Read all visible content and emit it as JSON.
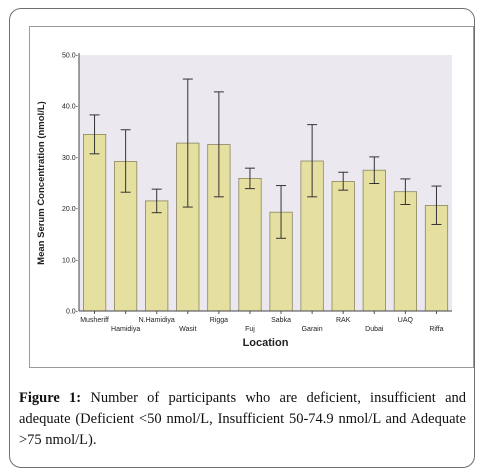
{
  "chart_data": {
    "type": "bar",
    "categories": [
      "Musheriff",
      "Hamidiya",
      "N.Hamidiya",
      "Wasit",
      "Rigga",
      "Fuj",
      "Sabka",
      "Garain",
      "RAK",
      "Dubai",
      "UAQ",
      "Riffa"
    ],
    "values": [
      34.5,
      29.2,
      21.5,
      32.8,
      32.5,
      25.9,
      19.3,
      29.3,
      25.3,
      27.5,
      23.3,
      20.6
    ],
    "error_low": [
      30.7,
      23.2,
      19.2,
      20.3,
      22.3,
      23.9,
      14.2,
      22.3,
      23.6,
      24.9,
      20.8,
      16.9
    ],
    "error_high": [
      38.3,
      35.4,
      23.8,
      45.3,
      42.8,
      27.9,
      24.5,
      36.4,
      27.1,
      30.1,
      25.8,
      24.4
    ],
    "xlabel": "Location",
    "ylabel": "Mean Serum Concentration (nmol/L)",
    "ylim": [
      0,
      50
    ],
    "yticks": [
      "0.0-",
      "10.0-",
      "20.0-",
      "30.0-",
      "40.0-",
      "50.0-"
    ],
    "grid": false,
    "bar_color": "#e5e0a0",
    "bar_edge_color": "#8a8560",
    "plot_background": "#ebe8f0"
  },
  "caption": {
    "lead": "Figure 1:",
    "text": " Number of participants who are deficient, insufficient and adequate (Deficient <50 nmol/L, Insufficient 50-74.9 nmol/L and Adequate >75 nmol/L)."
  }
}
